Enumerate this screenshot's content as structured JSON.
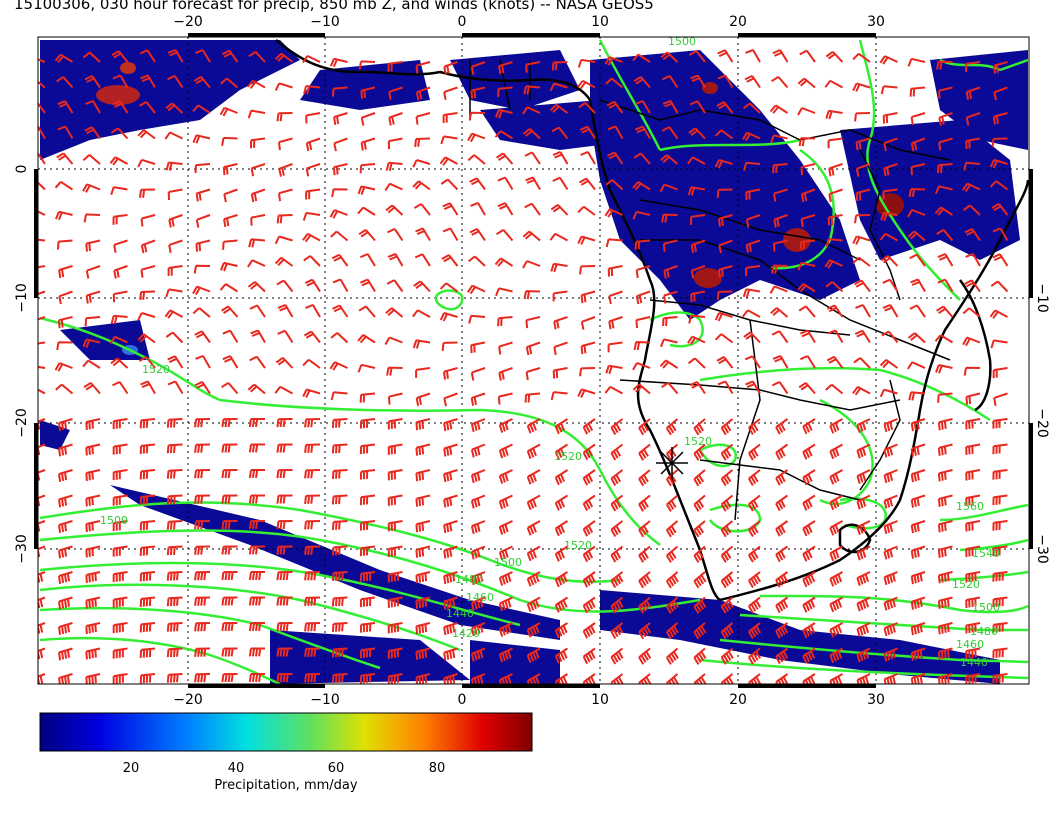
{
  "title": "15100306, 030 hour forecast for precip, 850 mb Z, and winds (knots) -- NASA GEOS5",
  "map": {
    "lon_ticks": [
      "−20",
      "−10",
      "0",
      "10",
      "20",
      "30"
    ],
    "lat_ticks": [
      "0",
      "−10",
      "−20",
      "−30"
    ],
    "lon_range": [
      -30,
      41
    ],
    "lat_range": [
      -40,
      10
    ],
    "contour_labels": [
      "1520",
      "1520",
      "1500",
      "1520",
      "1500",
      "1480",
      "1460",
      "1440",
      "1420",
      "1560",
      "1540",
      "1520",
      "1500",
      "1480",
      "1460",
      "1440",
      "1500",
      "1520"
    ],
    "colors": {
      "precip_low": "#00008c",
      "contours": "#33ee33",
      "wind_barbs": "#e8281e",
      "coastlines": "#000000"
    }
  },
  "colorbar": {
    "ticks": [
      "20",
      "40",
      "60",
      "80"
    ],
    "label": "Precipitation, mm/day",
    "range": [
      0,
      98
    ]
  }
}
